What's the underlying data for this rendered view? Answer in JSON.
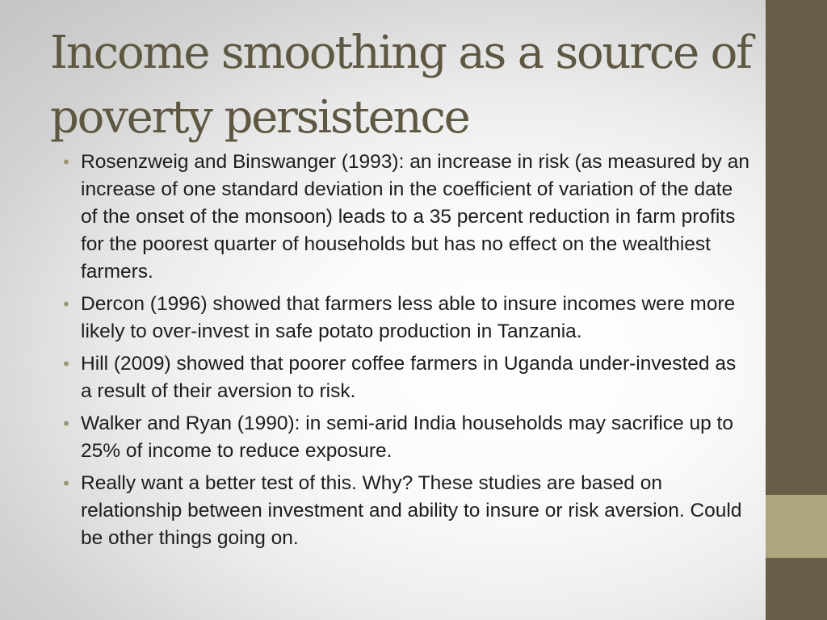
{
  "slide": {
    "title": "Income smoothing as a source of poverty persistence",
    "bullet_symbol": "•",
    "bullets": [
      "Rosenzweig and Binswanger (1993): an increase in risk (as measured by an increase of one standard deviation in the coefficient of variation of the date of the onset of the monsoon) leads to a 35 percent reduction in farm profits for the poorest quarter of households but has no effect on the wealthiest farmers.",
      "Dercon (1996) showed that farmers less able to insure incomes were more likely to over-invest in safe potato production in Tanzania.",
      "Hill (2009) showed that poorer coffee farmers in Uganda under-invested as a result of their aversion to risk.",
      "Walker and Ryan (1990): in semi-arid India households may sacrifice up to 25% of income to reduce exposure.",
      "Really want a better test of this. Why? These studies are based on relationship between investment and ability to insure or risk aversion. Could be other things going on."
    ]
  },
  "colors": {
    "title": "#5e5843",
    "side_bar": "#675e48",
    "side_accent": "#aba67c",
    "bullet_marker": "#9c9677",
    "body_text": "#1d1d1d"
  }
}
